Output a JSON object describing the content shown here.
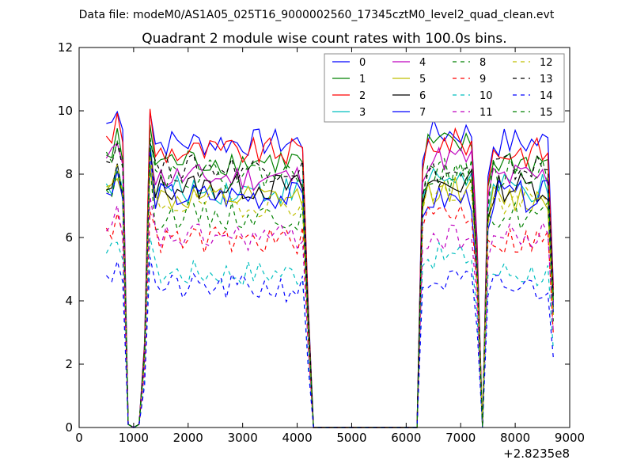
{
  "chart_data": {
    "type": "line",
    "suptitle": "Data file: modeM0/AS1A05_025T16_9000002560_17345cztM0_level2_quad_clean.evt",
    "title": "Quadrant 2 module wise count rates with 100.0s bins.",
    "xlabel": "",
    "ylabel": "",
    "xlim": [
      0,
      9000
    ],
    "ylim": [
      0,
      12
    ],
    "x_offset_label": "+2.8235e8",
    "xticks": [
      0,
      1000,
      2000,
      3000,
      4000,
      5000,
      6000,
      7000,
      8000,
      9000
    ],
    "xtick_labels": [
      "0",
      "1000",
      "2000",
      "3000",
      "4000",
      "5000",
      "6000",
      "7000",
      "8000",
      "9000"
    ],
    "yticks": [
      0,
      2,
      4,
      6,
      8,
      10,
      12
    ],
    "ytick_labels": [
      "0",
      "2",
      "4",
      "6",
      "8",
      "10",
      "12"
    ],
    "legend_position": "top-right",
    "legend_columns": 4,
    "segment_break_points": [
      [
        900,
        0
      ],
      [
        1100,
        0
      ],
      [
        4300,
        0
      ],
      [
        6200,
        0
      ],
      [
        7400,
        0
      ]
    ],
    "segments": [
      {
        "x": [
          500,
          600,
          700,
          800,
          900
        ],
        "mode": "approx"
      },
      {
        "x": [
          1100,
          1200,
          1300,
          1400,
          1500,
          1600,
          1700,
          1800,
          1900,
          2000,
          2100,
          2200,
          2300,
          2400,
          2500,
          2600,
          2700,
          2800,
          2900,
          3000,
          3100,
          3200,
          3300,
          3400,
          3500,
          3600,
          3700,
          3800,
          3900,
          4000,
          4100,
          4200,
          4300
        ]
      },
      {
        "x": [
          6200,
          6300,
          6400,
          6500,
          6600,
          6700,
          6800,
          6900,
          7000,
          7100,
          7200,
          7300,
          7400
        ]
      },
      {
        "x": [
          7400,
          7500,
          7600,
          7700,
          7800,
          7900,
          8000,
          8100,
          8200,
          8300,
          8400,
          8500,
          8600,
          8700
        ]
      }
    ],
    "series": [
      {
        "name": "0",
        "color": "#0000ff",
        "dash": "solid",
        "level": 9.0,
        "start": 9.6,
        "peak2": 9.9
      },
      {
        "name": "1",
        "color": "#008000",
        "dash": "solid",
        "level": 8.4,
        "start": 8.6,
        "peak2": 9.5
      },
      {
        "name": "2",
        "color": "#ff0000",
        "dash": "solid",
        "level": 8.7,
        "start": 9.2,
        "peak2": 9.6
      },
      {
        "name": "3",
        "color": "#00bfbf",
        "dash": "solid",
        "level": 7.5,
        "start": 7.7,
        "peak2": 8.5
      },
      {
        "name": "4",
        "color": "#bf00bf",
        "dash": "solid",
        "level": 7.9,
        "start": 8.5,
        "peak2": 9.1
      },
      {
        "name": "5",
        "color": "#bfbf00",
        "dash": "solid",
        "level": 7.2,
        "start": 7.5,
        "peak2": 8.1
      },
      {
        "name": "6",
        "color": "#000000",
        "dash": "solid",
        "level": 7.6,
        "start": 7.5,
        "peak2": 8.3
      },
      {
        "name": "7",
        "color": "#0000ff",
        "dash": "solid",
        "level": 7.3,
        "start": 7.4,
        "peak2": 7.8
      },
      {
        "name": "8",
        "color": "#008000",
        "dash": "dashed",
        "level": 6.7,
        "start": 7.5,
        "peak2": 8.5
      },
      {
        "name": "9",
        "color": "#ff0000",
        "dash": "dashed",
        "level": 5.9,
        "start": 6.3,
        "peak2": 7.4
      },
      {
        "name": "10",
        "color": "#00bfbf",
        "dash": "dashed",
        "level": 4.9,
        "start": 5.5,
        "peak2": 6.0
      },
      {
        "name": "11",
        "color": "#bf00bf",
        "dash": "dashed",
        "level": 6.0,
        "start": 6.2,
        "peak2": 6.6
      },
      {
        "name": "12",
        "color": "#bfbf00",
        "dash": "dashed",
        "level": 7.1,
        "start": 7.6,
        "peak2": 8.0
      },
      {
        "name": "13",
        "color": "#000000",
        "dash": "dashed",
        "level": 8.2,
        "start": 8.4,
        "peak2": 8.6
      },
      {
        "name": "14",
        "color": "#0000ff",
        "dash": "dashed",
        "level": 4.4,
        "start": 4.8,
        "peak2": 5.2
      },
      {
        "name": "15",
        "color": "#008000",
        "dash": "dashed",
        "level": 8.0,
        "start": 8.7,
        "peak2": 8.7
      }
    ]
  }
}
